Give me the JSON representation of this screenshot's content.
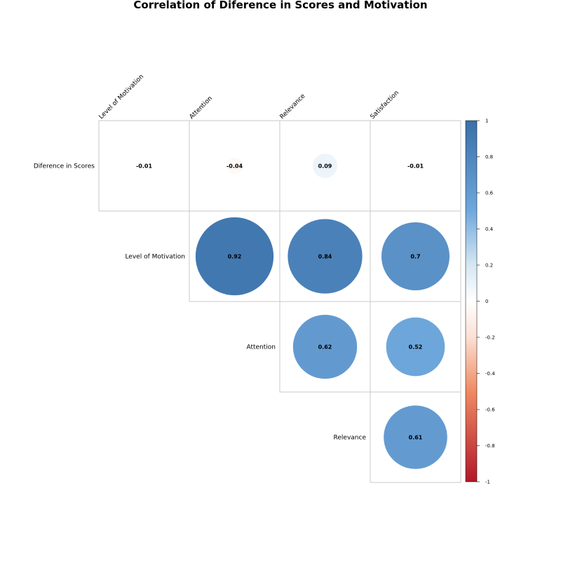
{
  "chart_data": {
    "type": "heatmap",
    "title": "Correlation of Diference in Scores and Motivation",
    "columns": [
      "Level of Motivation",
      "Attention",
      "Relevance",
      "Satisfaction"
    ],
    "rows": [
      "Diference in Scores",
      "Level of Motivation",
      "Attention",
      "Relevance"
    ],
    "cells": [
      {
        "row": "Diference in Scores",
        "col": "Level of Motivation",
        "value": -0.01
      },
      {
        "row": "Diference in Scores",
        "col": "Attention",
        "value": -0.04
      },
      {
        "row": "Diference in Scores",
        "col": "Relevance",
        "value": 0.09
      },
      {
        "row": "Diference in Scores",
        "col": "Satisfaction",
        "value": -0.01
      },
      {
        "row": "Level of Motivation",
        "col": "Attention",
        "value": 0.92
      },
      {
        "row": "Level of Motivation",
        "col": "Relevance",
        "value": 0.84
      },
      {
        "row": "Level of Motivation",
        "col": "Satisfaction",
        "value": 0.7
      },
      {
        "row": "Attention",
        "col": "Relevance",
        "value": 0.62
      },
      {
        "row": "Attention",
        "col": "Satisfaction",
        "value": 0.52
      },
      {
        "row": "Relevance",
        "col": "Satisfaction",
        "value": 0.61
      }
    ],
    "colorbar": {
      "range": [
        -1,
        1
      ],
      "ticks": [
        "1",
        "0.8",
        "0.6",
        "0.4",
        "0.2",
        "0",
        "-0.2",
        "-0.4",
        "-0.6",
        "-0.8",
        "-1"
      ],
      "colors": [
        "#B2182B",
        "#D6604D",
        "#F4A582",
        "#FDDBC7",
        "#FFFFFF",
        "#D1E5F0",
        "#92C5DE",
        "#4393C3",
        "#2166AC"
      ]
    }
  }
}
